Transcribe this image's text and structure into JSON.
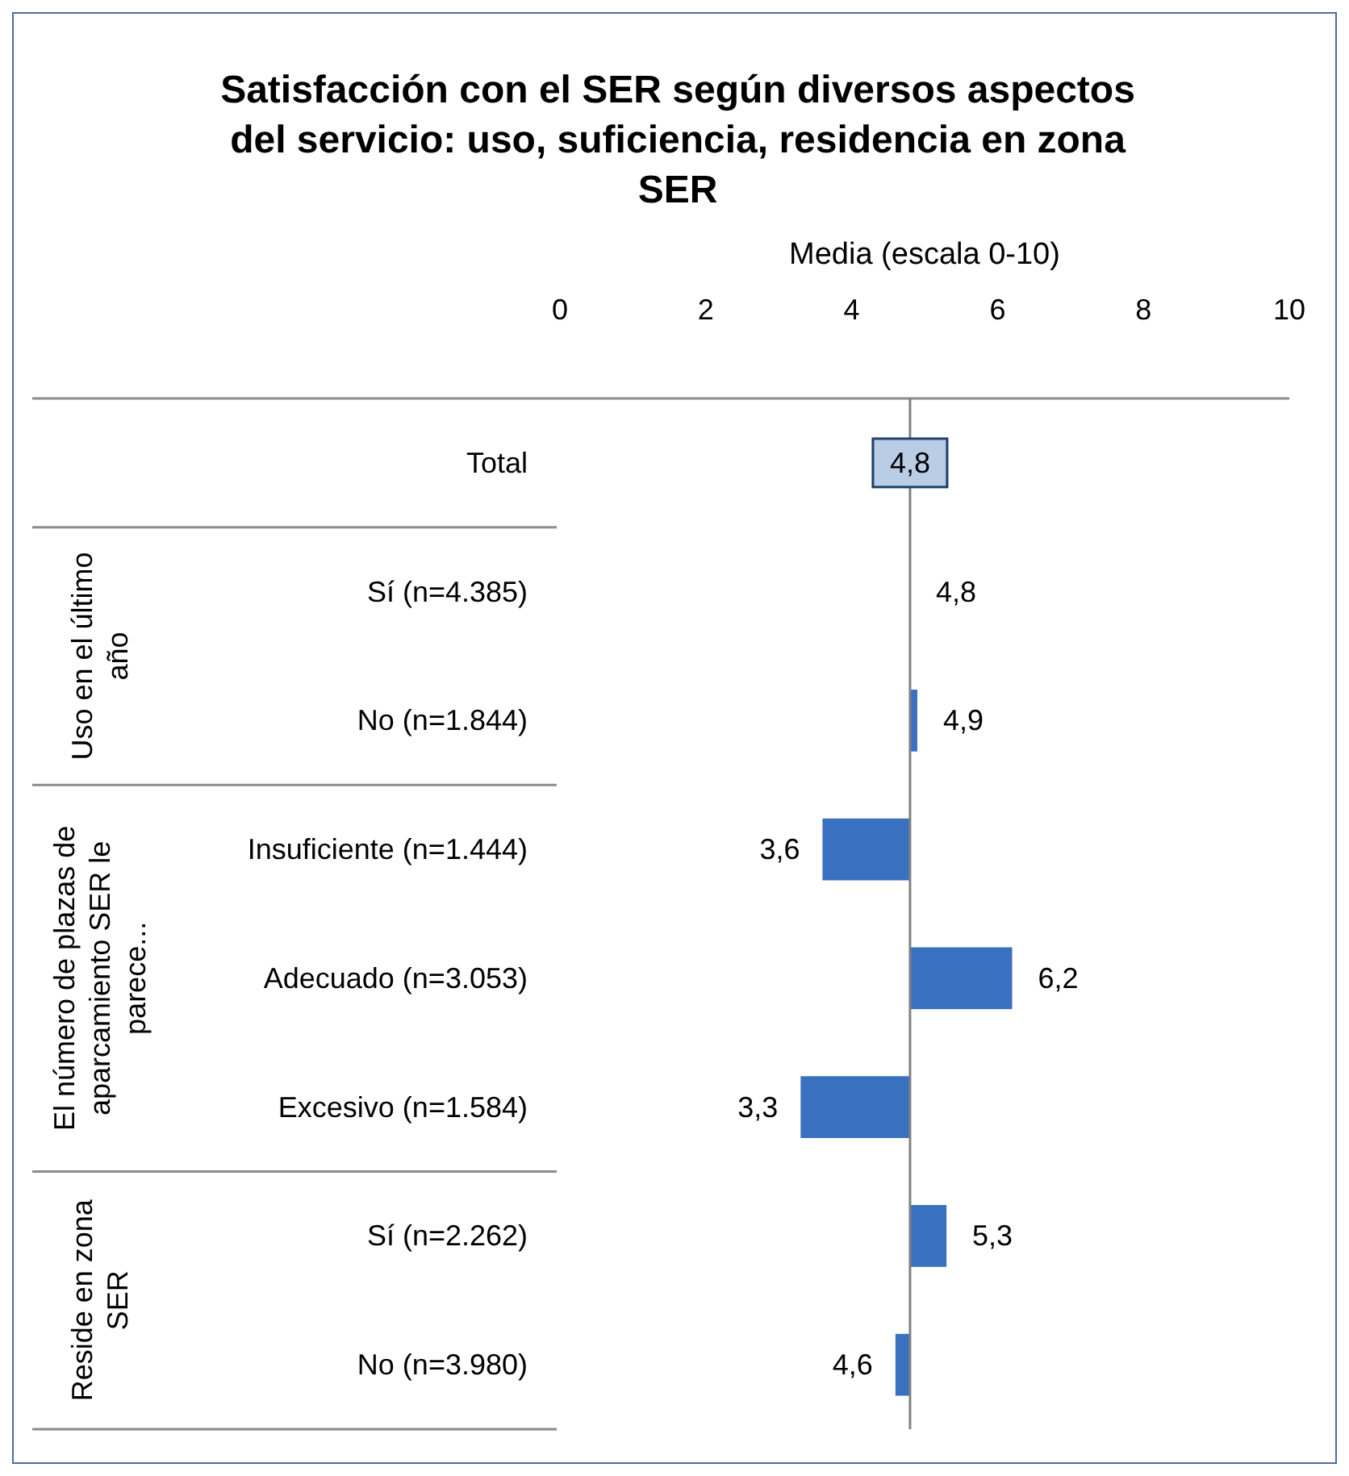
{
  "chart_data": {
    "type": "bar",
    "orientation": "horizontal",
    "title": "Satisfacción con el SER según diversos aspectos del servicio: uso, suficiencia, residencia en zona SER",
    "xlabel": "Media (escala 0-10)",
    "categories": [
      "Total",
      "Sí (n=4.385)",
      "No (n=1.844)",
      "Insuficiente (n=1.444)",
      "Adecuado (n=3.053)",
      "Excesivo (n=1.584)",
      "Sí (n=2.262)",
      "No (n=3.980)"
    ],
    "base": [
      null,
      null,
      4.8,
      4.8,
      4.8,
      4.8,
      4.8,
      4.8
    ],
    "values": [
      null,
      null,
      0.1,
      -1.2,
      1.4,
      -1.5,
      0.5,
      -0.2
    ],
    "color": "#3a70c0",
    "xlim": [
      0,
      10
    ],
    "xticks": [
      0,
      2,
      4,
      6,
      8,
      10
    ],
    "ref_lines": [
      {
        "axis": "x",
        "value": 4.8,
        "color": "#808080"
      }
    ],
    "annotations": [
      "Uso en el último año",
      "El número de plazas de aparcamiento SER le parece...",
      "Reside en zona SER",
      {
        "text": "4,8",
        "x": 4.8,
        "y": "Total"
      },
      {
        "text": "4,8",
        "x": 4.8,
        "y": "Sí (n=4.385)"
      },
      {
        "text": "4,9",
        "x": 4.9,
        "y": "No (n=1.844)"
      },
      {
        "text": "3,6",
        "x": 3.6,
        "y": "Insuficiente (n=1.444)"
      },
      {
        "text": "6,2",
        "x": 6.2,
        "y": "Adecuado (n=3.053)"
      },
      {
        "text": "3,3",
        "x": 3.3,
        "y": "Excesivo (n=1.584)"
      },
      {
        "text": "5,3",
        "x": 5.3,
        "y": "Sí (n=2.262)"
      },
      {
        "text": "4,6",
        "x": 4.6,
        "y": "No (n=3.980)"
      }
    ],
    "grid": false
  }
}
